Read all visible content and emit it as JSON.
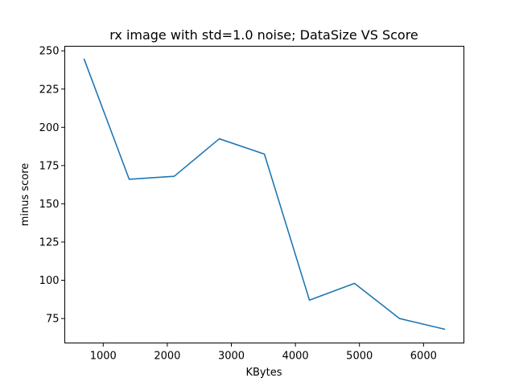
{
  "chart_data": {
    "type": "line",
    "title": "rx image with std=1.0 noise; DataSize VS Score",
    "xlabel": "KBytes",
    "ylabel": "minus score",
    "x": [
      703,
      1406,
      2109,
      2812,
      3516,
      4219,
      4922,
      5625,
      6328
    ],
    "series": [
      {
        "values": [
          244.5,
          166,
          168,
          192.5,
          182.5,
          87,
          98,
          75,
          68
        ],
        "color": "#1f77b4"
      }
    ],
    "xlim": [
      400,
      6630
    ],
    "ylim": [
      59,
      253
    ],
    "xticks": [
      1000,
      2000,
      3000,
      4000,
      5000,
      6000
    ],
    "yticks": [
      75,
      100,
      125,
      150,
      175,
      200,
      225,
      250
    ],
    "grid": false,
    "legend": false
  }
}
